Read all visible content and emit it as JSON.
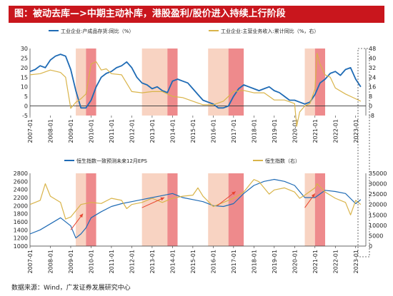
{
  "title": "图：被动去库—>中期主动补库，港股盈利/股价进入持续上行阶段",
  "source": "数据来源：Wind，广发证券发展研究中心",
  "colors": {
    "title_bg": "#c9161d",
    "blue": "#1f6bb5",
    "gold": "#d9b44a",
    "light_band": "#f8d3c2",
    "dark_band": "#ee8a8c",
    "arrow": "#e8442f"
  },
  "chart_data": [
    {
      "type": "line",
      "series": [
        {
          "name": "工业企业:产成品存货:同比（%）",
          "axis": "left",
          "x": [
            2007.0,
            2007.25,
            2007.5,
            2007.75,
            2008.0,
            2008.25,
            2008.5,
            2008.75,
            2009.0,
            2009.25,
            2009.5,
            2009.75,
            2010.0,
            2010.25,
            2010.5,
            2010.75,
            2011.0,
            2011.25,
            2011.5,
            2011.75,
            2012.0,
            2012.25,
            2012.5,
            2012.75,
            2013.0,
            2013.25,
            2013.5,
            2013.75,
            2014.0,
            2014.25,
            2014.5,
            2014.75,
            2015.0,
            2015.25,
            2015.5,
            2015.75,
            2016.0,
            2016.25,
            2016.5,
            2016.75,
            2017.0,
            2017.25,
            2017.5,
            2017.75,
            2018.0,
            2018.25,
            2018.5,
            2018.75,
            2019.0,
            2019.25,
            2019.5,
            2019.75,
            2020.0,
            2020.25,
            2020.5,
            2020.75,
            2021.0,
            2021.25,
            2021.5,
            2021.75,
            2022.0,
            2022.25,
            2022.5,
            2022.75,
            2023.0,
            2023.25
          ],
          "values": [
            18,
            19,
            21,
            20,
            24,
            26,
            27,
            26,
            19,
            8,
            -1,
            -1,
            3,
            10,
            15,
            17,
            18,
            20,
            21,
            23,
            20,
            15,
            12,
            11,
            9,
            10,
            8,
            7,
            13,
            14,
            13,
            12,
            9,
            6,
            3,
            2,
            1,
            -1,
            -1,
            0,
            5,
            9,
            11,
            10,
            9,
            8,
            9,
            10,
            8,
            7,
            5,
            3,
            3,
            2,
            1,
            2,
            6,
            12,
            14,
            17,
            18,
            16,
            19,
            20,
            14,
            10
          ]
        },
        {
          "name": "工业企业:主营业务收入:累计同比（%，右）",
          "axis": "right",
          "x": [
            2007.0,
            2007.5,
            2008.0,
            2008.5,
            2008.75,
            2009.0,
            2009.25,
            2009.5,
            2009.75,
            2010.0,
            2010.25,
            2010.5,
            2010.75,
            2011.0,
            2011.5,
            2012.0,
            2012.5,
            2013.0,
            2013.5,
            2014.0,
            2014.5,
            2015.0,
            2015.5,
            2016.0,
            2016.5,
            2017.0,
            2017.5,
            2018.0,
            2018.5,
            2019.0,
            2019.5,
            2020.0,
            2020.1,
            2020.25,
            2020.5,
            2020.75,
            2021.0,
            2021.1,
            2021.25,
            2021.5,
            2021.75,
            2022.0,
            2022.5,
            2023.0,
            2023.25
          ],
          "values": [
            26,
            27,
            30,
            28,
            24,
            -2,
            3,
            6,
            10,
            35,
            37,
            30,
            31,
            27,
            26,
            12,
            11,
            12,
            12,
            8,
            7,
            4,
            1,
            1,
            4,
            12,
            13,
            11,
            11,
            5,
            5,
            2,
            -17,
            -5,
            0,
            2,
            14,
            44,
            35,
            26,
            24,
            15,
            10,
            6,
            4
          ]
        }
      ],
      "x_ticks": [
        "2007-01",
        "2008-01",
        "2009-01",
        "2010-01",
        "2011-01",
        "2012-01",
        "2013-01",
        "2014-01",
        "2015-01",
        "2016-01",
        "2017-01",
        "2018-01",
        "2019-01",
        "2020-01",
        "2021-01",
        "2022-01",
        "2023-01"
      ],
      "y_left_ticks": [
        "-5",
        "0",
        "5",
        "10",
        "15",
        "20",
        "25",
        "30"
      ],
      "y_right_ticks": [
        "-8",
        "0",
        "8",
        "16",
        "24",
        "32",
        "40",
        "48"
      ],
      "ylim_left": [
        -5,
        30
      ],
      "ylim_right": [
        -8,
        48
      ]
    },
    {
      "type": "line",
      "series": [
        {
          "name": "恒生指数一致预测未来12月EPS",
          "axis": "left",
          "x": [
            2007.0,
            2007.5,
            2008.0,
            2008.5,
            2009.0,
            2009.25,
            2009.5,
            2009.75,
            2010.0,
            2010.5,
            2011.0,
            2011.5,
            2012.0,
            2012.5,
            2013.0,
            2013.5,
            2014.0,
            2014.5,
            2015.0,
            2015.5,
            2016.0,
            2016.5,
            2017.0,
            2017.5,
            2018.0,
            2018.5,
            2019.0,
            2019.5,
            2020.0,
            2020.5,
            2021.0,
            2021.5,
            2022.0,
            2022.5,
            2023.0,
            2023.25
          ],
          "values": [
            1300,
            1400,
            1550,
            1700,
            1500,
            1200,
            1300,
            1450,
            1700,
            1850,
            1980,
            2050,
            2100,
            2150,
            2200,
            2250,
            2300,
            2200,
            2150,
            2100,
            2000,
            1980,
            2050,
            2300,
            2500,
            2600,
            2650,
            2600,
            2500,
            2200,
            2200,
            2380,
            2350,
            2300,
            2050,
            2150
          ]
        },
        {
          "name": "恒生指数（右）",
          "axis": "right",
          "x": [
            2007.0,
            2007.5,
            2007.75,
            2008.0,
            2008.5,
            2008.75,
            2009.0,
            2009.5,
            2010.0,
            2010.5,
            2011.0,
            2011.5,
            2011.75,
            2012.0,
            2012.5,
            2013.0,
            2013.5,
            2014.0,
            2014.5,
            2015.0,
            2015.25,
            2015.5,
            2016.0,
            2016.5,
            2017.0,
            2017.5,
            2018.0,
            2018.25,
            2018.75,
            2019.0,
            2019.5,
            2020.0,
            2020.25,
            2020.5,
            2021.0,
            2021.1,
            2021.5,
            2022.0,
            2022.5,
            2022.75,
            2023.0,
            2023.25
          ],
          "values": [
            20000,
            22000,
            30000,
            24000,
            21000,
            13000,
            14000,
            20000,
            21000,
            20500,
            23000,
            22000,
            18000,
            20000,
            21000,
            23000,
            21000,
            23000,
            24000,
            24500,
            28000,
            24000,
            19000,
            21000,
            23000,
            26000,
            32000,
            31000,
            25000,
            27000,
            28000,
            26000,
            23000,
            24500,
            28000,
            30000,
            26000,
            23000,
            21000,
            15000,
            22000,
            20000
          ]
        }
      ],
      "x_ticks": [
        "2007-01",
        "2008-01",
        "2009-01",
        "2010-01",
        "2011-01",
        "2012-01",
        "2013-01",
        "2014-01",
        "2015-01",
        "2016-01",
        "2017-01",
        "2018-01",
        "2019-01",
        "2020-01",
        "2021-01",
        "2022-01",
        "2023-01"
      ],
      "y_left_ticks": [
        "1000",
        "1200",
        "1400",
        "1600",
        "1800",
        "2000",
        "2200",
        "2400",
        "2600",
        "2800"
      ],
      "y_right_ticks": [
        "0",
        "5000",
        "10000",
        "15000",
        "20000",
        "25000",
        "30000",
        "35000"
      ],
      "ylim_left": [
        1000,
        2800
      ],
      "ylim_right": [
        0,
        35000
      ]
    }
  ],
  "periods": [
    {
      "shade": "light",
      "from": 2009.25,
      "to": 2009.75
    },
    {
      "shade": "dark",
      "from": 2009.75,
      "to": 2010.25
    },
    {
      "shade": "light",
      "from": 2012.5,
      "to": 2013.75
    },
    {
      "shade": "dark",
      "from": 2013.75,
      "to": 2014.25
    },
    {
      "shade": "light",
      "from": 2015.75,
      "to": 2016.75
    },
    {
      "shade": "dark",
      "from": 2016.75,
      "to": 2017.5
    },
    {
      "shade": "light",
      "from": 2020.5,
      "to": 2021.0
    },
    {
      "shade": "dark",
      "from": 2021.0,
      "to": 2021.5
    }
  ],
  "trend_arrows": [
    {
      "from": [
        2009.0,
        1400
      ],
      "to": [
        2009.6,
        1800
      ]
    },
    {
      "from": [
        2012.5,
        1950
      ],
      "to": [
        2013.6,
        2200
      ]
    },
    {
      "from": [
        2016.2,
        2000
      ],
      "to": [
        2017.1,
        2350
      ]
    },
    {
      "from": [
        2020.5,
        1950
      ],
      "to": [
        2021.0,
        2300
      ]
    }
  ]
}
